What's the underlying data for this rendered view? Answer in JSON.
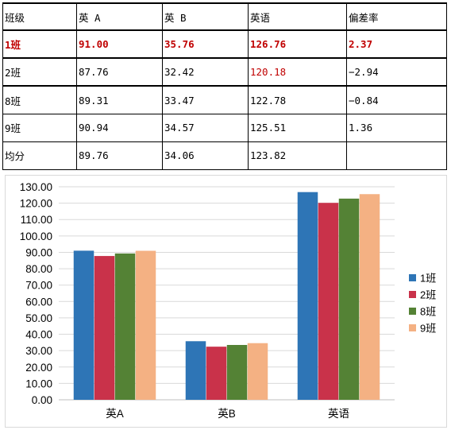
{
  "table": {
    "headers": [
      "班级",
      "英 A",
      "英 B",
      "英语",
      "偏差率"
    ],
    "rows": [
      {
        "cells": [
          "1班",
          "91.00",
          "35.76",
          "126.76",
          "2.37"
        ],
        "highlight": "all"
      },
      {
        "cells": [
          "2班",
          "87.76",
          "32.42",
          "120.18",
          "−2.94"
        ],
        "highlight": "english"
      },
      {
        "cells": [
          "8班",
          "89.31",
          "33.47",
          "122.78",
          "−0.84"
        ],
        "highlight": "none"
      },
      {
        "cells": [
          "9班",
          "90.94",
          "34.57",
          "125.51",
          "1.36"
        ],
        "highlight": "none"
      },
      {
        "cells": [
          "均分",
          "89.76",
          "34.06",
          "123.82",
          ""
        ],
        "highlight": "none"
      }
    ],
    "highlight_color": "#c00000"
  },
  "chart_data": {
    "type": "bar",
    "categories": [
      "英A",
      "英B",
      "英语"
    ],
    "series": [
      {
        "name": "1班",
        "values": [
          91.0,
          35.76,
          126.76
        ],
        "color": "#2e75b6"
      },
      {
        "name": "2班",
        "values": [
          87.76,
          32.42,
          120.18
        ],
        "color": "#c9324a"
      },
      {
        "name": "8班",
        "values": [
          89.31,
          33.47,
          122.78
        ],
        "color": "#548235"
      },
      {
        "name": "9班",
        "values": [
          90.94,
          34.57,
          125.51
        ],
        "color": "#f4b183"
      }
    ],
    "ylim": [
      0,
      130
    ],
    "yticks": [
      "0.00",
      "10.00",
      "20.00",
      "30.00",
      "40.00",
      "50.00",
      "60.00",
      "70.00",
      "80.00",
      "90.00",
      "100.00",
      "110.00",
      "120.00",
      "130.00"
    ],
    "grid": true,
    "legend": "right"
  }
}
